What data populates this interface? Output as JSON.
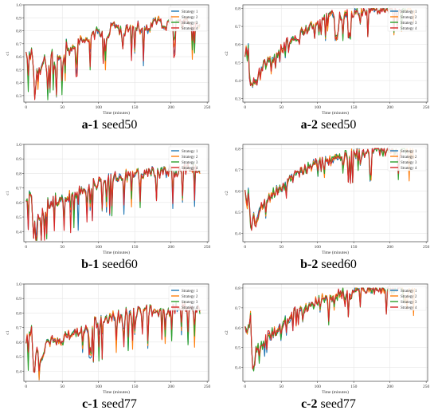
{
  "colors": {
    "s1": "#1f77b4",
    "s2": "#ff7f0e",
    "s3": "#2ca02c",
    "s4": "#d62728",
    "grid": "#e6e6e6",
    "axis": "#444444"
  },
  "legend_labels": [
    "Strategy 1",
    "Strategy 2",
    "Strategy 3",
    "Strategy 4"
  ],
  "x_label": "Time (minutes)",
  "panels": [
    {
      "caption_bold": "a-1",
      "caption_text": "seed50",
      "ylabel": "c1",
      "ylim": [
        0.25,
        1.0
      ],
      "yticks": [
        "0.3",
        "0.4",
        "0.5",
        "0.6",
        "0.7",
        "0.8",
        "0.9",
        "1.0"
      ],
      "xticks": [
        "0",
        "50",
        "100",
        "150",
        "200",
        "250"
      ],
      "xlim": [
        -3,
        252
      ],
      "x_end": [
        240,
        240,
        240,
        240
      ]
    },
    {
      "caption_bold": "a-2",
      "caption_text": "seed50",
      "ylabel": "c2",
      "ylim": [
        0.28,
        0.82
      ],
      "yticks": [
        "0.3",
        "0.4",
        "0.5",
        "0.6",
        "0.7",
        "0.8"
      ],
      "xticks": [
        "0",
        "50",
        "100",
        "150",
        "200",
        "250"
      ],
      "xlim": [
        -3,
        252
      ],
      "x_end": [
        215,
        235,
        222,
        215
      ]
    },
    {
      "caption_bold": "b-1",
      "caption_text": "seed60",
      "ylabel": "c1",
      "ylim": [
        0.33,
        1.0
      ],
      "yticks": [
        "0.4",
        "0.5",
        "0.6",
        "0.7",
        "0.8",
        "0.9",
        "1.0"
      ],
      "xticks": [
        "0",
        "50",
        "100",
        "150",
        "200",
        "250"
      ],
      "xlim": [
        -3,
        252
      ],
      "x_end": [
        240,
        240,
        240,
        240
      ]
    },
    {
      "caption_bold": "b-2",
      "caption_text": "seed60",
      "ylabel": "c2",
      "ylim": [
        0.36,
        0.82
      ],
      "yticks": [
        "0.4",
        "0.5",
        "0.6",
        "0.7",
        "0.8"
      ],
      "xticks": [
        "0",
        "50",
        "100",
        "150",
        "200",
        "250"
      ],
      "xlim": [
        -3,
        252
      ],
      "x_end": [
        215,
        235,
        222,
        215
      ]
    },
    {
      "caption_bold": "c-1",
      "caption_text": "seed77",
      "ylabel": "c1",
      "ylim": [
        0.33,
        1.0
      ],
      "yticks": [
        "0.4",
        "0.5",
        "0.6",
        "0.7",
        "0.8",
        "0.9",
        "1.0"
      ],
      "xticks": [
        "0",
        "50",
        "100",
        "150",
        "200",
        "250"
      ],
      "xlim": [
        -3,
        252
      ],
      "x_end": [
        240,
        240,
        240,
        240
      ]
    },
    {
      "caption_bold": "c-2",
      "caption_text": "seed77",
      "ylabel": "c2",
      "ylim": [
        0.33,
        0.82
      ],
      "yticks": [
        "0.4",
        "0.5",
        "0.6",
        "0.7",
        "0.8"
      ],
      "xticks": [
        "0",
        "50",
        "100",
        "150",
        "200",
        "250"
      ],
      "xlim": [
        -3,
        252
      ],
      "x_end": [
        215,
        235,
        222,
        215
      ]
    }
  ],
  "chart_data": [
    {
      "type": "line",
      "xlabel": "Time (minutes)",
      "ylabel": "c1",
      "ylim": [
        0.25,
        1.0
      ],
      "xlim": [
        -3,
        252
      ],
      "series": [
        {
          "name": "Strategy 1"
        },
        {
          "name": "Strategy 2"
        },
        {
          "name": "Strategy 3"
        },
        {
          "name": "Strategy 4"
        }
      ],
      "x": [
        0,
        5,
        7,
        9,
        12,
        16,
        20,
        25,
        30,
        35,
        40,
        45,
        50,
        55,
        60,
        70,
        80,
        90,
        100,
        110,
        120,
        130,
        140,
        150,
        160,
        170,
        180,
        190,
        200,
        210,
        220,
        230,
        240
      ],
      "values": [
        0.62,
        0.6,
        0.63,
        0.62,
        0.3,
        0.58,
        0.45,
        0.62,
        0.46,
        0.66,
        0.52,
        0.62,
        0.55,
        0.7,
        0.65,
        0.72,
        0.72,
        0.76,
        0.8,
        0.75,
        0.85,
        0.8,
        0.82,
        0.86,
        0.8,
        0.84,
        0.88,
        0.84,
        0.87,
        0.85,
        0.87,
        0.84,
        0.86
      ]
    },
    {
      "type": "line",
      "xlabel": "Time (minutes)",
      "ylabel": "c2",
      "ylim": [
        0.28,
        0.82
      ],
      "xlim": [
        -3,
        252
      ],
      "series": [
        {
          "name": "Strategy 1"
        },
        {
          "name": "Strategy 2"
        },
        {
          "name": "Strategy 3"
        },
        {
          "name": "Strategy 4"
        }
      ],
      "x": [
        0,
        5,
        8,
        10,
        15,
        20,
        30,
        40,
        50,
        60,
        70,
        80,
        90,
        100,
        110,
        120,
        130,
        140,
        150,
        160,
        170,
        180,
        190,
        200,
        210,
        220,
        230
      ],
      "values": [
        0.57,
        0.58,
        0.32,
        0.42,
        0.38,
        0.47,
        0.5,
        0.53,
        0.58,
        0.62,
        0.64,
        0.67,
        0.7,
        0.72,
        0.75,
        0.76,
        0.76,
        0.77,
        0.78,
        0.79,
        0.79,
        0.8,
        0.8,
        0.8,
        0.8,
        0.8,
        0.8
      ]
    },
    {
      "type": "line",
      "xlabel": "Time (minutes)",
      "ylabel": "c1",
      "ylim": [
        0.33,
        1.0
      ],
      "xlim": [
        -3,
        252
      ],
      "series": [
        {
          "name": "Strategy 1"
        },
        {
          "name": "Strategy 2"
        },
        {
          "name": "Strategy 3"
        },
        {
          "name": "Strategy 4"
        }
      ],
      "x": [
        0,
        5,
        8,
        10,
        15,
        20,
        30,
        40,
        50,
        60,
        70,
        80,
        90,
        100,
        110,
        120,
        130,
        140,
        150,
        160,
        170,
        180,
        190,
        200,
        210,
        220,
        230,
        240
      ],
      "values": [
        0.62,
        0.65,
        0.6,
        0.38,
        0.55,
        0.5,
        0.6,
        0.62,
        0.64,
        0.65,
        0.68,
        0.7,
        0.72,
        0.74,
        0.76,
        0.78,
        0.77,
        0.8,
        0.8,
        0.8,
        0.82,
        0.82,
        0.82,
        0.83,
        0.83,
        0.84,
        0.84,
        0.84
      ]
    },
    {
      "type": "line",
      "xlabel": "Time (minutes)",
      "ylabel": "c2",
      "ylim": [
        0.36,
        0.82
      ],
      "xlim": [
        -3,
        252
      ],
      "series": [
        {
          "name": "Strategy 1"
        },
        {
          "name": "Strategy 2"
        },
        {
          "name": "Strategy 3"
        },
        {
          "name": "Strategy 4"
        }
      ],
      "x": [
        0,
        5,
        8,
        10,
        15,
        20,
        30,
        40,
        50,
        60,
        70,
        80,
        90,
        100,
        110,
        120,
        130,
        140,
        150,
        160,
        170,
        180,
        190,
        200,
        210,
        220,
        230
      ],
      "values": [
        0.58,
        0.59,
        0.4,
        0.48,
        0.45,
        0.53,
        0.56,
        0.6,
        0.62,
        0.65,
        0.68,
        0.7,
        0.72,
        0.74,
        0.74,
        0.75,
        0.76,
        0.77,
        0.78,
        0.78,
        0.79,
        0.8,
        0.8,
        0.8,
        0.8,
        0.8,
        0.8
      ]
    },
    {
      "type": "line",
      "xlabel": "Time (minutes)",
      "ylabel": "c1",
      "ylim": [
        0.33,
        1.0
      ],
      "xlim": [
        -3,
        252
      ],
      "series": [
        {
          "name": "Strategy 1"
        },
        {
          "name": "Strategy 2"
        },
        {
          "name": "Strategy 3"
        },
        {
          "name": "Strategy 4"
        }
      ],
      "x": [
        0,
        5,
        8,
        10,
        15,
        20,
        30,
        40,
        50,
        60,
        70,
        80,
        90,
        100,
        110,
        120,
        130,
        140,
        150,
        160,
        170,
        180,
        190,
        200,
        210,
        220,
        230,
        240
      ],
      "values": [
        0.63,
        0.65,
        0.7,
        0.37,
        0.55,
        0.5,
        0.6,
        0.62,
        0.63,
        0.65,
        0.67,
        0.7,
        0.72,
        0.74,
        0.76,
        0.78,
        0.78,
        0.8,
        0.8,
        0.81,
        0.82,
        0.82,
        0.83,
        0.83,
        0.84,
        0.84,
        0.84,
        0.84
      ]
    },
    {
      "type": "line",
      "xlabel": "Time (minutes)",
      "ylabel": "c2",
      "ylim": [
        0.33,
        0.82
      ],
      "xlim": [
        -3,
        252
      ],
      "series": [
        {
          "name": "Strategy 1"
        },
        {
          "name": "Strategy 2"
        },
        {
          "name": "Strategy 3"
        },
        {
          "name": "Strategy 4"
        }
      ],
      "x": [
        0,
        5,
        8,
        10,
        15,
        20,
        30,
        40,
        50,
        60,
        70,
        80,
        90,
        100,
        110,
        120,
        130,
        140,
        150,
        160,
        170,
        180,
        190,
        200,
        210,
        220,
        230
      ],
      "values": [
        0.6,
        0.6,
        0.68,
        0.36,
        0.48,
        0.5,
        0.55,
        0.58,
        0.62,
        0.65,
        0.68,
        0.7,
        0.72,
        0.74,
        0.75,
        0.76,
        0.77,
        0.78,
        0.78,
        0.79,
        0.79,
        0.8,
        0.8,
        0.8,
        0.8,
        0.8,
        0.8
      ]
    }
  ]
}
